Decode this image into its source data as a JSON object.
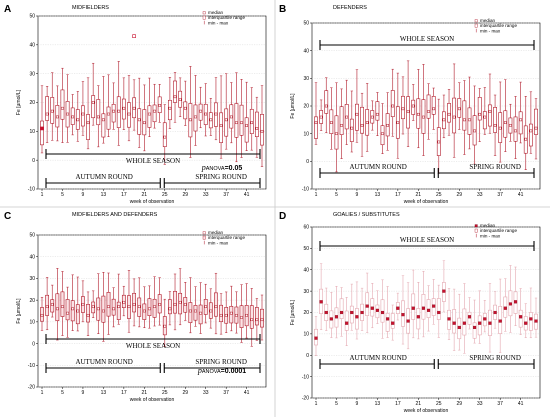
{
  "chart_data": [
    {
      "type": "box",
      "panel_letter": "A",
      "title": "MIDFIELDERS",
      "ylabel": "Fe [µmol/L]",
      "xlabel": "week of observation",
      "ylim": [
        -10,
        50
      ],
      "yticks": [
        -10,
        0,
        10,
        20,
        30,
        40,
        50
      ],
      "xticks": [
        "1",
        "5",
        "9",
        "13",
        "17",
        "21",
        "25",
        "29",
        "33",
        "37",
        "41"
      ],
      "legend": [
        "median",
        "interquartile range",
        "min - max"
      ],
      "season_label": "WHOLE SEASON",
      "autumn_label": "AUTUMN ROUND",
      "spring_label": "SPRING ROUND",
      "anova_prefix": "p",
      "anova_sub": "ANOVA",
      "anova_value": "=0.05",
      "outliers": [
        {
          "week": 1,
          "value": 11
        },
        {
          "week": 19,
          "value": 43
        }
      ],
      "medians": [
        11,
        16,
        17,
        15,
        18,
        16,
        15,
        14,
        16,
        13,
        20,
        15,
        14,
        16,
        17,
        17,
        18,
        16,
        18,
        14,
        13,
        16,
        17,
        19,
        8,
        18,
        22,
        21,
        18,
        14,
        15,
        17,
        16,
        14,
        16,
        12,
        14,
        15,
        13,
        13,
        12,
        13,
        11,
        10
      ]
    },
    {
      "type": "box",
      "panel_letter": "B",
      "title": "DEFENDERS",
      "ylabel": "Fe [µmol/L]",
      "xlabel": "week of observation",
      "ylim": [
        -10,
        50
      ],
      "yticks": [
        -10,
        0,
        10,
        20,
        30,
        40,
        50
      ],
      "xticks": [
        "1",
        "5",
        "9",
        "13",
        "17",
        "21",
        "25",
        "29",
        "33",
        "37",
        "41"
      ],
      "legend": [
        "median",
        "interquartile range",
        "min - max"
      ],
      "season_label": "WHOLE SEASON",
      "autumn_label": "AUTUMN ROUND",
      "spring_label": "SPRING ROUND",
      "medians": [
        14,
        16,
        20,
        14,
        10,
        13,
        16,
        12,
        17,
        13,
        14,
        16,
        17,
        10,
        13,
        20,
        14,
        19,
        18,
        20,
        17,
        16,
        18,
        19,
        7,
        15,
        17,
        16,
        19,
        15,
        15,
        11,
        17,
        16,
        18,
        13,
        12,
        14,
        13,
        11,
        15,
        8,
        11,
        12
      ]
    },
    {
      "type": "box",
      "panel_letter": "C",
      "title": "MIDFIELDERS AND DEFENDERS",
      "ylabel": "Fe [µmol/L]",
      "xlabel": "week of observation",
      "ylim": [
        -20,
        50
      ],
      "yticks": [
        -20,
        -10,
        0,
        10,
        20,
        30,
        40,
        50
      ],
      "xticks": [
        "1",
        "5",
        "9",
        "13",
        "17",
        "21",
        "25",
        "29",
        "33",
        "37",
        "41"
      ],
      "legend": [
        "median",
        "interquartile range",
        "min - max"
      ],
      "season_label": "WHOLE SEASON",
      "autumn_label": "AUTUMN ROUND",
      "spring_label": "SPRING ROUND",
      "anova_prefix": "p",
      "anova_sub": "ANOVA",
      "anova_value": "=0.0001",
      "medians": [
        13,
        17,
        18,
        16,
        17,
        14,
        16,
        15,
        18,
        13,
        17,
        16,
        15,
        17,
        16,
        17,
        19,
        17,
        18,
        17,
        15,
        16,
        17,
        18,
        8,
        16,
        18,
        19,
        18,
        15,
        15,
        14,
        17,
        15,
        17,
        13,
        13,
        14,
        13,
        12,
        13,
        11,
        11,
        11
      ]
    },
    {
      "type": "box",
      "panel_letter": "D",
      "title": "GOALIES / SUBSTITUTES",
      "ylabel": "Fe [µmol/L]",
      "xlabel": "week of observation",
      "ylim": [
        -20,
        60
      ],
      "yticks": [
        -20,
        -10,
        0,
        10,
        20,
        30,
        40,
        50,
        60
      ],
      "xticks": [
        "1",
        "5",
        "9",
        "13",
        "17",
        "21",
        "25",
        "29",
        "33",
        "37",
        "41"
      ],
      "legend": [
        "median",
        "interquartile range",
        "min - max"
      ],
      "season_label": "WHOLE SEASON",
      "autumn_label": "AUTUMN ROUND",
      "spring_label": "SPRING ROUND",
      "medians": [
        8,
        25,
        20,
        17,
        18,
        20,
        15,
        20,
        18,
        20,
        23,
        22,
        21,
        20,
        17,
        15,
        22,
        19,
        16,
        22,
        18,
        22,
        21,
        23,
        20,
        30,
        17,
        15,
        13,
        15,
        18,
        13,
        15,
        17,
        15,
        20,
        16,
        22,
        24,
        25,
        18,
        15,
        17,
        16
      ]
    }
  ]
}
